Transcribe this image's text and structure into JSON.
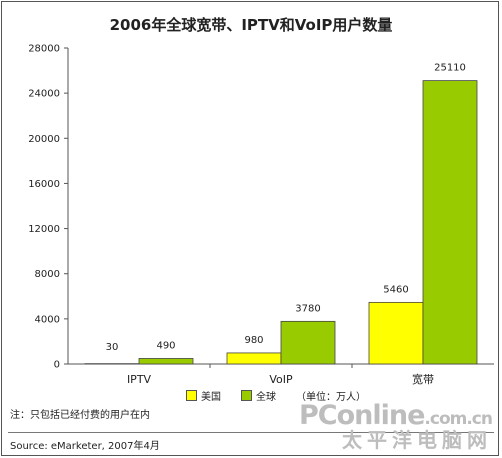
{
  "title": "2006年全球宽带、IPTV和VoIP用户数量",
  "legend": {
    "us_label": "美国",
    "global_label": "全球",
    "unit": "（单位：万人）"
  },
  "note": "注：只包括已经付费的用户在内",
  "source": "Source: eMarketer, 2007年4月",
  "watermark": {
    "brand": "PConline",
    "domain": ".com.cn",
    "cn": "太平洋电脑网"
  },
  "colors": {
    "us": "#ffff00",
    "global": "#99cc00"
  },
  "chart_data": {
    "type": "bar",
    "title": "2006年全球宽带、IPTV和VoIP用户数量",
    "categories": [
      "IPTV",
      "VoIP",
      "宽带"
    ],
    "series": [
      {
        "name": "美国",
        "values": [
          30,
          980,
          5460
        ]
      },
      {
        "name": "全球",
        "values": [
          490,
          3780,
          25110
        ]
      }
    ],
    "yticks": [
      0,
      4000,
      8000,
      12000,
      16000,
      20000,
      24000,
      28000
    ],
    "ylim": [
      0,
      28000
    ],
    "grid": false,
    "legend_position": "bottom"
  }
}
